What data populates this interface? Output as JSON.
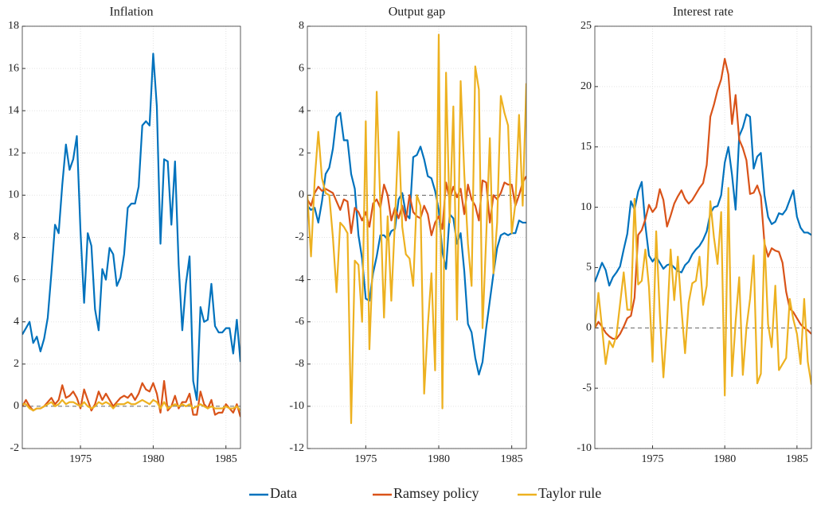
{
  "chart_data": [
    {
      "type": "line",
      "title": "Inflation",
      "x": [
        1971,
        1971.25,
        1971.5,
        1971.75,
        1972,
        1972.25,
        1972.5,
        1972.75,
        1973,
        1973.25,
        1973.5,
        1973.75,
        1974,
        1974.25,
        1974.5,
        1974.75,
        1975,
        1975.25,
        1975.5,
        1975.75,
        1976,
        1976.25,
        1976.5,
        1976.75,
        1977,
        1977.25,
        1977.5,
        1977.75,
        1978,
        1978.25,
        1978.5,
        1978.75,
        1979,
        1979.25,
        1979.5,
        1979.75,
        1980,
        1980.25,
        1980.5,
        1980.75,
        1981,
        1981.25,
        1981.5,
        1981.75,
        1982,
        1982.25,
        1982.5,
        1982.75,
        1983,
        1983.25,
        1983.5,
        1983.75,
        1984,
        1984.25,
        1984.5,
        1984.75,
        1985,
        1985.25,
        1985.5,
        1985.75,
        1986
      ],
      "series": [
        {
          "name": "Data",
          "color": "#0072bd",
          "values": [
            3.4,
            3.7,
            4.0,
            3.0,
            3.3,
            2.6,
            3.2,
            4.2,
            6.3,
            8.6,
            8.2,
            10.5,
            12.4,
            11.2,
            11.7,
            12.8,
            8.3,
            4.9,
            8.2,
            7.6,
            4.6,
            3.6,
            6.5,
            6.0,
            7.5,
            7.2,
            5.7,
            6.1,
            7.2,
            9.4,
            9.6,
            9.6,
            10.4,
            13.3,
            13.5,
            13.3,
            16.7,
            14.2,
            7.7,
            11.7,
            11.6,
            8.6,
            11.6,
            6.7,
            3.6,
            5.8,
            7.1,
            1.2,
            0.3,
            4.7,
            4.0,
            4.1,
            5.8,
            3.8,
            3.5,
            3.5,
            3.7,
            3.7,
            2.5,
            4.1,
            2.1
          ]
        },
        {
          "name": "Ramsey policy",
          "color": "#d95319",
          "values": [
            0,
            0.3,
            0,
            -0.2,
            -0.1,
            -0.1,
            0,
            0.2,
            0.4,
            0.1,
            0.3,
            1.0,
            0.4,
            0.5,
            0.7,
            0.4,
            -0.1,
            0.8,
            0.3,
            -0.2,
            0.1,
            0.7,
            0.3,
            0.6,
            0.3,
            0,
            0.2,
            0.4,
            0.5,
            0.4,
            0.6,
            0.3,
            0.6,
            1.1,
            0.8,
            0.7,
            1.1,
            0.6,
            -0.3,
            1.2,
            -0.2,
            0,
            0.5,
            -0.1,
            0.2,
            0.2,
            0.6,
            -0.4,
            -0.4,
            0.7,
            0.1,
            -0.1,
            0.3,
            -0.4,
            -0.3,
            -0.3,
            0.1,
            -0.1,
            -0.3,
            0.1,
            -0.5
          ]
        },
        {
          "name": "Taylor rule",
          "color": "#edb120",
          "values": [
            0.1,
            0.1,
            -0.1,
            -0.2,
            -0.1,
            -0.1,
            0,
            0.1,
            0.2,
            0,
            0.1,
            0.3,
            0.1,
            0.2,
            0.2,
            0.1,
            0,
            0.2,
            0,
            -0.1,
            0,
            0.2,
            0.1,
            0.2,
            0.1,
            -0.1,
            0.1,
            0.1,
            0.1,
            0.2,
            0.1,
            0.1,
            0.2,
            0.3,
            0.2,
            0.1,
            0.3,
            0.2,
            -0.1,
            0.2,
            -0.1,
            0,
            0.1,
            0,
            0.1,
            0,
            0.1,
            -0.1,
            0,
            0.1,
            0,
            -0.1,
            0,
            -0.1,
            -0.1,
            -0.1,
            0,
            -0.1,
            -0.1,
            0,
            -0.2
          ]
        }
      ],
      "xlim": [
        1971,
        1986
      ],
      "xticks": [
        1975,
        1980,
        1985
      ],
      "ylim": [
        -2,
        18
      ],
      "yticks": [
        -2,
        0,
        2,
        4,
        6,
        8,
        10,
        12,
        14,
        16,
        18
      ],
      "reference_line": 0,
      "grid": true
    },
    {
      "type": "line",
      "title": "Output gap",
      "x": [
        1971,
        1971.25,
        1971.5,
        1971.75,
        1972,
        1972.25,
        1972.5,
        1972.75,
        1973,
        1973.25,
        1973.5,
        1973.75,
        1974,
        1974.25,
        1974.5,
        1974.75,
        1975,
        1975.25,
        1975.5,
        1975.75,
        1976,
        1976.25,
        1976.5,
        1976.75,
        1977,
        1977.25,
        1977.5,
        1977.75,
        1978,
        1978.25,
        1978.5,
        1978.75,
        1979,
        1979.25,
        1979.5,
        1979.75,
        1980,
        1980.25,
        1980.5,
        1980.75,
        1981,
        1981.25,
        1981.5,
        1981.75,
        1982,
        1982.25,
        1982.5,
        1982.75,
        1983,
        1983.25,
        1983.5,
        1983.75,
        1984,
        1984.25,
        1984.5,
        1984.75,
        1985,
        1985.25,
        1985.5,
        1985.75,
        1986
      ],
      "series": [
        {
          "name": "Data",
          "color": "#0072bd",
          "values": [
            -0.5,
            -0.7,
            -0.6,
            -1.3,
            -0.3,
            1.0,
            1.3,
            2.2,
            3.7,
            3.9,
            2.6,
            2.6,
            1.0,
            0.3,
            -1.9,
            -3.0,
            -4.9,
            -5.0,
            -3.7,
            -2.9,
            -1.9,
            -1.9,
            -2.1,
            -1.7,
            -1.6,
            -0.2,
            0.1,
            -0.9,
            -1.1,
            1.8,
            1.9,
            2.3,
            1.7,
            0.9,
            0.8,
            0.2,
            -0.7,
            -2.7,
            -3.5,
            -0.9,
            -1.1,
            -2.3,
            -1.8,
            -3.6,
            -6.1,
            -6.5,
            -7.7,
            -8.5,
            -7.9,
            -6.3,
            -5.0,
            -3.7,
            -2.5,
            -1.9,
            -1.8,
            -1.9,
            -1.8,
            -1.8,
            -1.2,
            -1.3,
            -1.3
          ]
        },
        {
          "name": "Ramsey policy",
          "color": "#d95319",
          "values": [
            -0.2,
            -0.5,
            0.1,
            0.4,
            0.2,
            0.3,
            0.2,
            0.1,
            -0.3,
            -0.7,
            -0.2,
            -0.3,
            -1.8,
            -0.6,
            -0.8,
            -1.2,
            -0.8,
            -1.5,
            -0.4,
            -0.2,
            -0.6,
            0.5,
            0,
            -1.2,
            -0.6,
            -1.1,
            -0.5,
            -1.2,
            0,
            -0.8,
            -1.0,
            -1.1,
            -0.5,
            -0.9,
            -1.9,
            -1.3,
            -1.0,
            -1.6,
            0.6,
            -0.2,
            0.4,
            -0.1,
            0.3,
            -0.9,
            0.5,
            -0.2,
            -0.5,
            -1.2,
            0.7,
            0.6,
            -1.3,
            0,
            -0.2,
            0.1,
            0.6,
            0.5,
            0.5,
            -0.5,
            0,
            0.6,
            0.9
          ]
        },
        {
          "name": "Taylor rule",
          "color": "#edb120",
          "values": [
            0,
            -2.9,
            0.7,
            3.0,
            0.8,
            0.1,
            0,
            -2.0,
            -4.6,
            -1.3,
            -1.5,
            -1.8,
            -10.8,
            -3.1,
            -3.3,
            -6.0,
            3.5,
            -7.3,
            -2.8,
            4.9,
            -0.5,
            -5.8,
            -1.0,
            -5.0,
            -1.2,
            3.0,
            -1.5,
            -2.8,
            -3.0,
            -4.3,
            0,
            -0.5,
            -9.4,
            -6.2,
            -3.7,
            -8.3,
            7.6,
            -10.1,
            5.8,
            -1.3,
            4.2,
            -5.9,
            5.4,
            1.0,
            -2.3,
            -4.3,
            6.1,
            5.0,
            -6.3,
            -2.0,
            2.7,
            -3.7,
            -1.3,
            4.7,
            3.9,
            3.3,
            -1.8,
            -0.4,
            3.8,
            -0.5,
            5.3
          ]
        }
      ],
      "xlim": [
        1971,
        1986
      ],
      "xticks": [
        1975,
        1980,
        1985
      ],
      "ylim": [
        -12,
        8
      ],
      "yticks": [
        -12,
        -10,
        -8,
        -6,
        -4,
        -2,
        0,
        2,
        4,
        6,
        8
      ],
      "reference_line": 0,
      "grid": true
    },
    {
      "type": "line",
      "title": "Interest rate",
      "x": [
        1971,
        1971.25,
        1971.5,
        1971.75,
        1972,
        1972.25,
        1972.5,
        1972.75,
        1973,
        1973.25,
        1973.5,
        1973.75,
        1974,
        1974.25,
        1974.5,
        1974.75,
        1975,
        1975.25,
        1975.5,
        1975.75,
        1976,
        1976.25,
        1976.5,
        1976.75,
        1977,
        1977.25,
        1977.5,
        1977.75,
        1978,
        1978.25,
        1978.5,
        1978.75,
        1979,
        1979.25,
        1979.5,
        1979.75,
        1980,
        1980.25,
        1980.5,
        1980.75,
        1981,
        1981.25,
        1981.5,
        1981.75,
        1982,
        1982.25,
        1982.5,
        1982.75,
        1983,
        1983.25,
        1983.5,
        1983.75,
        1984,
        1984.25,
        1984.5,
        1984.75,
        1985,
        1985.25,
        1985.5,
        1985.75,
        1986
      ],
      "series": [
        {
          "name": "Data",
          "color": "#0072bd",
          "values": [
            3.8,
            4.6,
            5.4,
            4.8,
            3.5,
            4.2,
            4.6,
            5.1,
            6.5,
            7.8,
            10.5,
            9.8,
            11.3,
            12.1,
            8.5,
            6.0,
            5.5,
            5.9,
            5.4,
            4.9,
            5.2,
            5.3,
            5.0,
            4.7,
            4.6,
            5.2,
            5.5,
            6.1,
            6.5,
            6.8,
            7.3,
            8.0,
            9.5,
            10.0,
            10.1,
            11.0,
            13.7,
            15.0,
            12.7,
            9.8,
            15.9,
            16.6,
            17.7,
            17.5,
            13.2,
            14.2,
            14.5,
            11.0,
            9.2,
            8.6,
            8.8,
            9.5,
            9.4,
            9.8,
            10.6,
            11.4,
            9.2,
            8.3,
            7.9,
            7.9,
            7.7
          ]
        },
        {
          "name": "Ramsey policy",
          "color": "#d95319",
          "values": [
            0,
            0.5,
            0.1,
            -0.4,
            -0.7,
            -0.9,
            -0.9,
            -0.5,
            0.1,
            0.8,
            1.0,
            2.5,
            7.7,
            8.1,
            9.0,
            10.2,
            9.6,
            10.0,
            11.5,
            10.6,
            8.4,
            9.3,
            10.3,
            10.9,
            11.4,
            10.7,
            10.3,
            10.6,
            11.1,
            11.6,
            12.0,
            13.5,
            17.5,
            18.5,
            19.7,
            20.6,
            22.3,
            21.0,
            16.9,
            19.3,
            15.6,
            14.9,
            13.9,
            11.1,
            11.2,
            11.8,
            10.9,
            7.0,
            5.9,
            6.6,
            6.4,
            6.3,
            5.4,
            3.0,
            1.6,
            1.3,
            0.8,
            0.3,
            0,
            -0.2,
            -0.5
          ]
        },
        {
          "name": "Taylor rule",
          "color": "#edb120",
          "values": [
            0,
            2.9,
            0,
            -3.0,
            -1.1,
            -1.6,
            -0.6,
            2.0,
            4.6,
            1.5,
            1.5,
            10.7,
            3.6,
            3.9,
            6.5,
            3.4,
            -2.8,
            8.0,
            1.2,
            -4.1,
            0.3,
            6.5,
            2.3,
            5.9,
            1.6,
            -2.1,
            2.1,
            3.7,
            3.9,
            5.9,
            1.9,
            3.5,
            10.5,
            7.5,
            5.3,
            9.6,
            -5.6,
            11.6,
            -4.0,
            0.5,
            4.2,
            -3.9,
            0,
            2.4,
            6.0,
            -4.6,
            -3.8,
            7.3,
            0.3,
            -1.6,
            3.5,
            -3.5,
            -3.0,
            -2.5,
            2.4,
            0.7,
            -0.5,
            -3.0,
            2.4,
            -2.8,
            -4.7
          ]
        }
      ],
      "xlim": [
        1971,
        1986
      ],
      "xticks": [
        1975,
        1980,
        1985
      ],
      "ylim": [
        -10,
        25
      ],
      "yticks": [
        -10,
        -5,
        0,
        5,
        10,
        15,
        20,
        25
      ],
      "reference_line": 0,
      "grid": true
    }
  ]
}
